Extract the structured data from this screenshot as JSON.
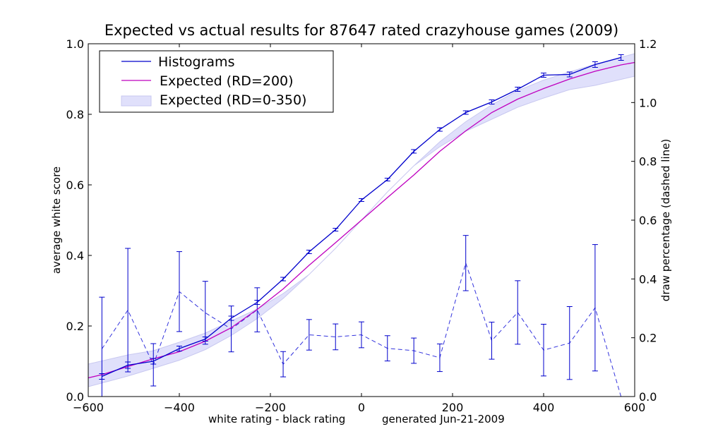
{
  "chart_data": {
    "type": "line",
    "title": "Expected vs actual results for 87647 rated crazyhouse games (2009)",
    "xlabel": "white rating - black rating",
    "footnote": "generated Jun-21-2009",
    "ylabel_left": "average white score",
    "ylabel_right": "draw percentage (dashed line)",
    "xlim": [
      -600,
      600
    ],
    "ylim_left": [
      0,
      1
    ],
    "ylim_right": [
      0,
      1.2
    ],
    "x_ticks": [
      -600,
      -400,
      -200,
      0,
      200,
      400,
      600
    ],
    "x_tick_labels": [
      "−600",
      "−400",
      "−200",
      "0",
      "200",
      "400",
      "600"
    ],
    "y_left_ticks": [
      0,
      0.2,
      0.4,
      0.6,
      0.8,
      1.0
    ],
    "y_left_tick_labels": [
      "0.0",
      "0.2",
      "0.4",
      "0.6",
      "0.8",
      "1.0"
    ],
    "y_right_ticks": [
      0,
      0.2,
      0.4,
      0.6,
      0.8,
      1.0,
      1.2
    ],
    "y_right_tick_labels": [
      "0.0",
      "0.2",
      "0.4",
      "0.6",
      "0.8",
      "1.0",
      "1.2"
    ],
    "legend": [
      "Histograms",
      "Expected (RD=200)",
      "Expected (RD=0-350)"
    ],
    "colors": {
      "histogram": "#0000cc",
      "expected": "#bf00bf",
      "band_fill": "#e0e0fb",
      "band_stroke": "#c8c8f0",
      "draw": "#3333dd"
    },
    "series": [
      {
        "name": "Histograms",
        "x": [
          -570,
          -513,
          -457,
          -400,
          -343,
          -286,
          -229,
          -172,
          -115,
          -57,
          0,
          57,
          115,
          172,
          229,
          286,
          343,
          400,
          457,
          513,
          570
        ],
        "y": [
          0.057,
          0.089,
          0.1,
          0.136,
          0.163,
          0.222,
          0.267,
          0.333,
          0.41,
          0.473,
          0.557,
          0.615,
          0.695,
          0.757,
          0.805,
          0.835,
          0.871,
          0.911,
          0.913,
          0.941,
          0.961
        ],
        "err": [
          0.008,
          0.009,
          0.008,
          0.007,
          0.006,
          0.006,
          0.006,
          0.005,
          0.005,
          0.004,
          0.004,
          0.004,
          0.005,
          0.005,
          0.005,
          0.006,
          0.006,
          0.006,
          0.007,
          0.008,
          0.008
        ]
      },
      {
        "name": "Expected (RD=200)",
        "x": [
          -600,
          -570,
          -513,
          -457,
          -400,
          -343,
          -286,
          -229,
          -172,
          -115,
          -57,
          0,
          57,
          115,
          172,
          229,
          286,
          343,
          400,
          457,
          513,
          570,
          600
        ],
        "y": [
          0.053,
          0.062,
          0.085,
          0.107,
          0.127,
          0.157,
          0.195,
          0.247,
          0.305,
          0.372,
          0.436,
          0.5,
          0.564,
          0.628,
          0.695,
          0.753,
          0.805,
          0.843,
          0.873,
          0.9,
          0.922,
          0.94,
          0.947
        ]
      },
      {
        "name": "Expected (RD=0-350)",
        "x": [
          -600,
          -513,
          -457,
          -400,
          -343,
          -286,
          -229,
          -172,
          -115,
          -57,
          0,
          57,
          115,
          172,
          229,
          286,
          343,
          400,
          457,
          513,
          600
        ],
        "lower": [
          0.028,
          0.058,
          0.08,
          0.103,
          0.133,
          0.173,
          0.221,
          0.278,
          0.346,
          0.42,
          0.5,
          0.58,
          0.654,
          0.708,
          0.752,
          0.786,
          0.82,
          0.846,
          0.87,
          0.882,
          0.908
        ],
        "upper": [
          0.092,
          0.118,
          0.13,
          0.154,
          0.18,
          0.214,
          0.248,
          0.292,
          0.346,
          0.42,
          0.5,
          0.58,
          0.654,
          0.722,
          0.779,
          0.827,
          0.867,
          0.897,
          0.92,
          0.942,
          0.972
        ]
      },
      {
        "name": "Draw percentage",
        "axis": "right",
        "x": [
          -570,
          -513,
          -457,
          -400,
          -343,
          -286,
          -229,
          -172,
          -115,
          -57,
          0,
          57,
          115,
          172,
          229,
          286,
          343,
          400,
          457,
          513,
          570
        ],
        "y": [
          0.162,
          0.294,
          0.108,
          0.357,
          0.285,
          0.23,
          0.295,
          0.11,
          0.21,
          0.203,
          0.21,
          0.164,
          0.156,
          0.132,
          0.454,
          0.19,
          0.286,
          0.158,
          0.182,
          0.302,
          0.0
        ],
        "err": [
          0.176,
          0.21,
          0.072,
          0.136,
          0.107,
          0.078,
          0.075,
          0.043,
          0.052,
          0.044,
          0.044,
          0.043,
          0.043,
          0.047,
          0.094,
          0.063,
          0.108,
          0.088,
          0.124,
          0.215,
          0.0
        ]
      }
    ]
  }
}
